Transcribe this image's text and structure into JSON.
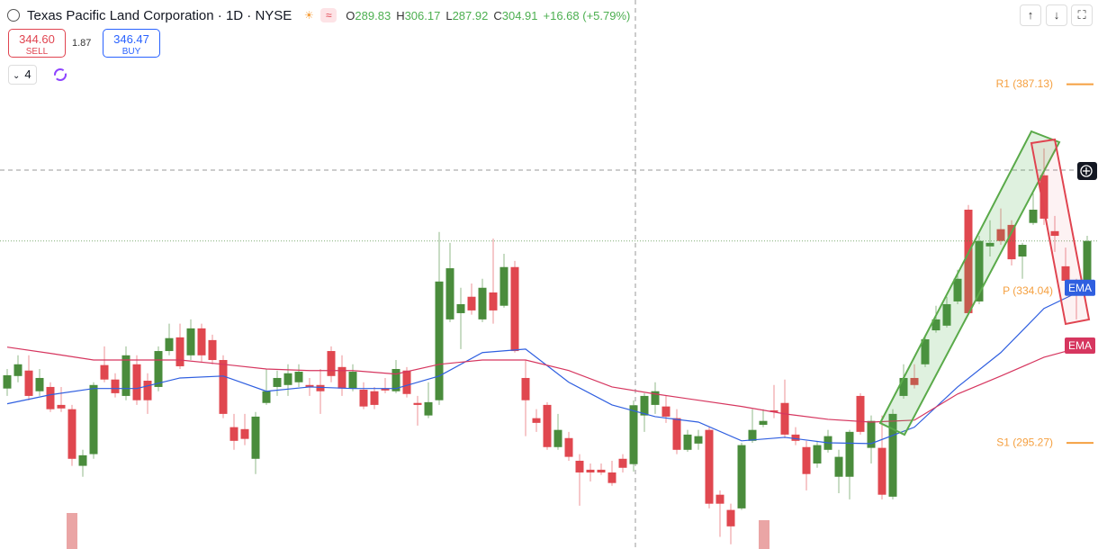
{
  "header": {
    "symbol": "Texas Pacific Land Corporation · 1D · NYSE",
    "ohlc": [
      {
        "key": "O",
        "value": "289.83"
      },
      {
        "key": "H",
        "value": "306.17"
      },
      {
        "key": "L",
        "value": "287.92"
      },
      {
        "key": "C",
        "value": "304.91"
      }
    ],
    "change": "+16.68 (+5.79%)"
  },
  "trade": {
    "sell_price": "344.60",
    "sell_label": "SELL",
    "spread": "1.87",
    "buy_price": "346.47",
    "buy_label": "BUY"
  },
  "indicators_count": "4",
  "chart_data": {
    "type": "candlestick",
    "ylim": [
      268.1,
      408.7
    ],
    "up_color": "#4a8c3c",
    "down_color": "#e0474f",
    "candles": [
      [
        309.2,
        314.2,
        307.3,
        312.6
      ],
      [
        312.4,
        317.7,
        310.8,
        315.4
      ],
      [
        313.8,
        317.7,
        306.2,
        307.3
      ],
      [
        308.5,
        314.2,
        307.3,
        311.9
      ],
      [
        309.6,
        310.8,
        303.2,
        303.9
      ],
      [
        305.0,
        309.6,
        303.2,
        304.1
      ],
      [
        303.9,
        305.0,
        289.4,
        291.2
      ],
      [
        289.4,
        293.5,
        286.6,
        292.1
      ],
      [
        292.4,
        310.8,
        291.2,
        310.1
      ],
      [
        315.2,
        320.0,
        310.8,
        311.5
      ],
      [
        311.5,
        313.1,
        306.9,
        308.0
      ],
      [
        307.3,
        320.0,
        306.2,
        317.7
      ],
      [
        315.4,
        317.7,
        305.0,
        306.2
      ],
      [
        311.2,
        313.1,
        302.7,
        306.2
      ],
      [
        309.6,
        320.0,
        308.5,
        318.8
      ],
      [
        318.8,
        325.8,
        317.7,
        322.1
      ],
      [
        322.3,
        325.8,
        314.2,
        314.9
      ],
      [
        317.7,
        326.9,
        316.5,
        324.6
      ],
      [
        324.6,
        325.8,
        316.1,
        317.7
      ],
      [
        321.6,
        323.0,
        315.4,
        316.5
      ],
      [
        316.5,
        317.7,
        301.6,
        302.7
      ],
      [
        299.3,
        302.7,
        293.5,
        295.8
      ],
      [
        298.8,
        302.7,
        294.7,
        296.3
      ],
      [
        291.2,
        303.2,
        287.3,
        302.0
      ],
      [
        305.5,
        314.2,
        305.0,
        308.5
      ],
      [
        309.6,
        313.8,
        307.3,
        311.9
      ],
      [
        310.1,
        315.4,
        307.3,
        313.1
      ],
      [
        310.8,
        315.4,
        309.6,
        313.5
      ],
      [
        310.1,
        311.9,
        307.3,
        309.6
      ],
      [
        310.1,
        314.2,
        302.7,
        308.5
      ],
      [
        318.8,
        320.0,
        310.8,
        312.4
      ],
      [
        314.7,
        317.7,
        307.3,
        309.2
      ],
      [
        309.2,
        315.4,
        308.5,
        313.5
      ],
      [
        308.9,
        310.8,
        303.9,
        304.6
      ],
      [
        308.5,
        309.6,
        303.9,
        305.0
      ],
      [
        309.2,
        311.9,
        308.0,
        308.7
      ],
      [
        308.5,
        316.5,
        308.0,
        314.2
      ],
      [
        313.8,
        314.7,
        306.9,
        307.8
      ],
      [
        305.5,
        307.3,
        299.7,
        305.0
      ],
      [
        302.3,
        310.8,
        301.6,
        305.7
      ],
      [
        306.2,
        349.3,
        305.0,
        336.6
      ],
      [
        326.9,
        346.5,
        326.2,
        340.0
      ],
      [
        328.5,
        335.0,
        319.3,
        330.8
      ],
      [
        332.7,
        336.1,
        328.1,
        329.2
      ],
      [
        326.9,
        337.3,
        326.2,
        335.0
      ],
      [
        333.8,
        347.6,
        325.8,
        329.2
      ],
      [
        330.4,
        343.7,
        329.9,
        340.3
      ],
      [
        340.3,
        341.9,
        318.4,
        318.8
      ],
      [
        311.9,
        316.5,
        297.0,
        306.2
      ],
      [
        301.6,
        303.9,
        298.1,
        300.4
      ],
      [
        305.0,
        305.7,
        293.5,
        294.2
      ],
      [
        294.2,
        302.7,
        293.5,
        298.6
      ],
      [
        296.5,
        298.1,
        290.7,
        291.7
      ],
      [
        290.7,
        292.4,
        279.2,
        287.7
      ],
      [
        288.4,
        290.0,
        285.4,
        287.7
      ],
      [
        288.4,
        290.0,
        287.1,
        287.7
      ],
      [
        287.7,
        290.7,
        284.3,
        285.0
      ],
      [
        291.2,
        292.4,
        287.7,
        288.9
      ],
      [
        289.83,
        306.17,
        287.92,
        304.91
      ],
      [
        302.3,
        308.0,
        298.1,
        307.3
      ],
      [
        305.0,
        310.8,
        302.7,
        308.5
      ],
      [
        304.6,
        307.3,
        300.4,
        302.0
      ],
      [
        301.6,
        303.9,
        292.4,
        293.5
      ],
      [
        293.5,
        298.6,
        293.0,
        297.4
      ],
      [
        295.1,
        298.6,
        293.5,
        297.0
      ],
      [
        298.6,
        299.3,
        278.5,
        279.7
      ],
      [
        282.0,
        283.1,
        271.2,
        279.7
      ],
      [
        278.1,
        279.7,
        269.3,
        273.9
      ],
      [
        278.5,
        295.3,
        278.1,
        294.7
      ],
      [
        295.8,
        303.9,
        295.3,
        298.6
      ],
      [
        299.9,
        303.9,
        299.3,
        300.9
      ],
      [
        303.6,
        310.1,
        301.6,
        303.2
      ],
      [
        305.5,
        311.5,
        296.5,
        297.4
      ],
      [
        297.4,
        299.3,
        294.7,
        295.8
      ],
      [
        294.2,
        295.8,
        283.1,
        287.3
      ],
      [
        290.0,
        295.8,
        288.9,
        294.7
      ],
      [
        293.5,
        298.6,
        292.8,
        297.0
      ],
      [
        286.6,
        293.5,
        282.4,
        291.7
      ],
      [
        286.6,
        298.6,
        280.8,
        298.1
      ],
      [
        307.3,
        308.0,
        297.4,
        298.1
      ],
      [
        294.0,
        302.3,
        290.0,
        300.9
      ],
      [
        294.0,
        302.3,
        280.8,
        282.0
      ],
      [
        281.5,
        303.9,
        280.8,
        302.7
      ],
      [
        307.3,
        315.4,
        306.6,
        311.9
      ],
      [
        311.9,
        315.4,
        309.2,
        310.1
      ],
      [
        315.4,
        323.0,
        314.7,
        321.8
      ],
      [
        324.1,
        330.4,
        323.5,
        326.9
      ],
      [
        325.3,
        332.7,
        324.8,
        330.8
      ],
      [
        331.5,
        339.6,
        330.8,
        337.3
      ],
      [
        355.0,
        356.2,
        328.1,
        328.5
      ],
      [
        331.5,
        348.3,
        330.8,
        347.0
      ],
      [
        345.6,
        352.3,
        343.0,
        346.5
      ],
      [
        350.0,
        355.3,
        346.0,
        347.0
      ],
      [
        351.1,
        352.3,
        340.7,
        342.3
      ],
      [
        343.0,
        346.5,
        337.3,
        346.0
      ],
      [
        351.6,
        359.2,
        351.1,
        355.0
      ],
      [
        363.8,
        370.7,
        351.1,
        352.7
      ],
      [
        349.5,
        353.4,
        344.2,
        348.3
      ],
      [
        340.5,
        345.3,
        335.0,
        336.8
      ],
      [
        336.8,
        337.3,
        326.9,
        335.4
      ],
      [
        334.5,
        348.3,
        333.8,
        347.0
      ]
    ],
    "lines": [
      {
        "name": "EMA",
        "color": "#2f5fe0",
        "x": [
          0,
          4,
          8,
          12,
          16,
          20,
          24,
          28,
          32,
          36,
          40,
          44,
          48,
          52,
          56,
          60,
          64,
          68,
          72,
          76,
          80,
          84,
          88,
          92,
          96,
          100
        ],
        "values": [
          305.3,
          307.6,
          309.2,
          309.2,
          311.9,
          312.4,
          308.5,
          309.6,
          309.2,
          309.2,
          312.4,
          318.4,
          319.3,
          310.8,
          305.0,
          302.0,
          300.6,
          295.8,
          296.7,
          295.3,
          295.1,
          299.3,
          309.6,
          318.4,
          329.7,
          335.0
        ]
      },
      {
        "name": "EMA",
        "color": "#d6365f",
        "x": [
          0,
          4,
          8,
          12,
          16,
          20,
          24,
          28,
          32,
          36,
          40,
          44,
          48,
          52,
          56,
          60,
          64,
          68,
          72,
          76,
          80,
          84,
          88,
          92,
          96,
          100
        ],
        "values": [
          319.8,
          318.2,
          316.5,
          316.5,
          316.5,
          315.4,
          314.2,
          313.8,
          313.8,
          312.9,
          315.4,
          316.5,
          316.5,
          313.8,
          309.6,
          307.8,
          306.2,
          304.6,
          302.7,
          301.3,
          300.6,
          301.1,
          307.8,
          312.4,
          317.2,
          320.2
        ]
      }
    ],
    "pivots": [
      {
        "label": "R1 (387.13)",
        "value": 387.13
      },
      {
        "label": "P (334.04)",
        "value": 334.04
      },
      {
        "label": "S1 (295.27)",
        "value": 295.27
      }
    ],
    "pivot_color": "#f5a040"
  }
}
